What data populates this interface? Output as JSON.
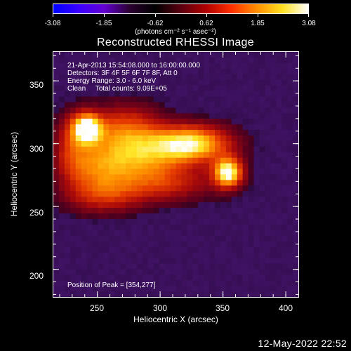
{
  "colorbar": {
    "ticks": [
      "-3.08",
      "-1.85",
      "-0.62",
      "0.62",
      "1.85",
      "3.08"
    ],
    "units": "(photons cm⁻² s⁻¹ asec⁻²)",
    "colors": [
      "#0000ff",
      "#3a00ff",
      "#6400d0",
      "#2a0030",
      "#000000",
      "#5a0010",
      "#b00000",
      "#ff3000",
      "#ff9000",
      "#ffe020",
      "#ffffff"
    ]
  },
  "plot": {
    "title": "Reconstructed RHESSI Image",
    "info_lines": [
      "21-Apr-2013 15:54:08.000 to 16:00:00.000",
      "Detectors: 3F 4F 5F 6F 7F 8F, Att 0",
      "Energy Range: 3.0 - 6.0 keV",
      "Clean     Total counts: 9.09E+05"
    ],
    "peak_text": "Position of Peak = [354,277]",
    "xlabel": "Heliocentric X (arcsec)",
    "ylabel": "Heliocentric Y (arcsec)",
    "xticks": [
      "250",
      "300",
      "350",
      "400"
    ],
    "yticks": [
      "350",
      "300",
      "250",
      "200"
    ],
    "xrange": [
      215,
      410
    ],
    "yrange": [
      178,
      373
    ],
    "sources": [
      {
        "x": 242,
        "y": 312,
        "amp": 1.0,
        "sx": 8,
        "sy": 8
      },
      {
        "x": 324,
        "y": 300,
        "amp": 0.9,
        "sx": 22,
        "sy": 10
      },
      {
        "x": 354,
        "y": 277,
        "amp": 1.0,
        "sx": 8,
        "sy": 8
      },
      {
        "x": 272,
        "y": 310,
        "amp": 0.55,
        "sx": 20,
        "sy": 14
      },
      {
        "x": 285,
        "y": 288,
        "amp": 0.5,
        "sx": 25,
        "sy": 12
      },
      {
        "x": 250,
        "y": 280,
        "amp": 0.42,
        "sx": 18,
        "sy": 14
      },
      {
        "x": 300,
        "y": 268,
        "amp": 0.38,
        "sx": 30,
        "sy": 10
      },
      {
        "x": 255,
        "y": 258,
        "amp": 0.32,
        "sx": 22,
        "sy": 10
      },
      {
        "x": 230,
        "y": 298,
        "amp": 0.35,
        "sx": 10,
        "sy": 18
      }
    ]
  },
  "timestamp": "12-May-2022 22:52"
}
